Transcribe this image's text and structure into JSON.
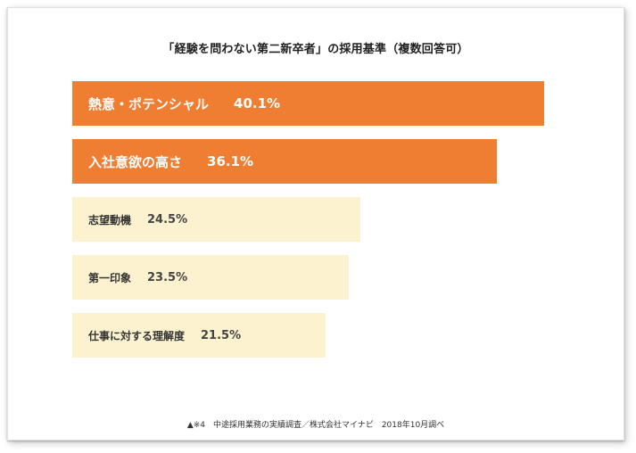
{
  "colors": {
    "highlight": "#f07e32",
    "muted": "#fdf2cf",
    "highlight_text": "#ffffff",
    "muted_text": "#333333"
  },
  "title": "「経験を問わない第二新卒者」の採用基準（複数回答可）",
  "source": "※4　中途採用業務の実績調査／株式会社マイナビ　2018年10月調べ",
  "source_marker": "▲",
  "chart_data": {
    "type": "bar",
    "orientation": "horizontal",
    "title": "「経験を問わない第二新卒者」の採用基準（複数回答可）",
    "unit": "%",
    "categories": [
      "熱意・ポテンシャル",
      "入社意欲の高さ",
      "志望動機",
      "第一印象",
      "仕事に対する理解度"
    ],
    "values": [
      40.1,
      36.1,
      24.5,
      23.5,
      21.5
    ],
    "value_labels": [
      "40.1%",
      "36.1%",
      "24.5%",
      "23.5%",
      "21.5%"
    ],
    "highlighted": [
      true,
      true,
      false,
      false,
      false
    ]
  }
}
